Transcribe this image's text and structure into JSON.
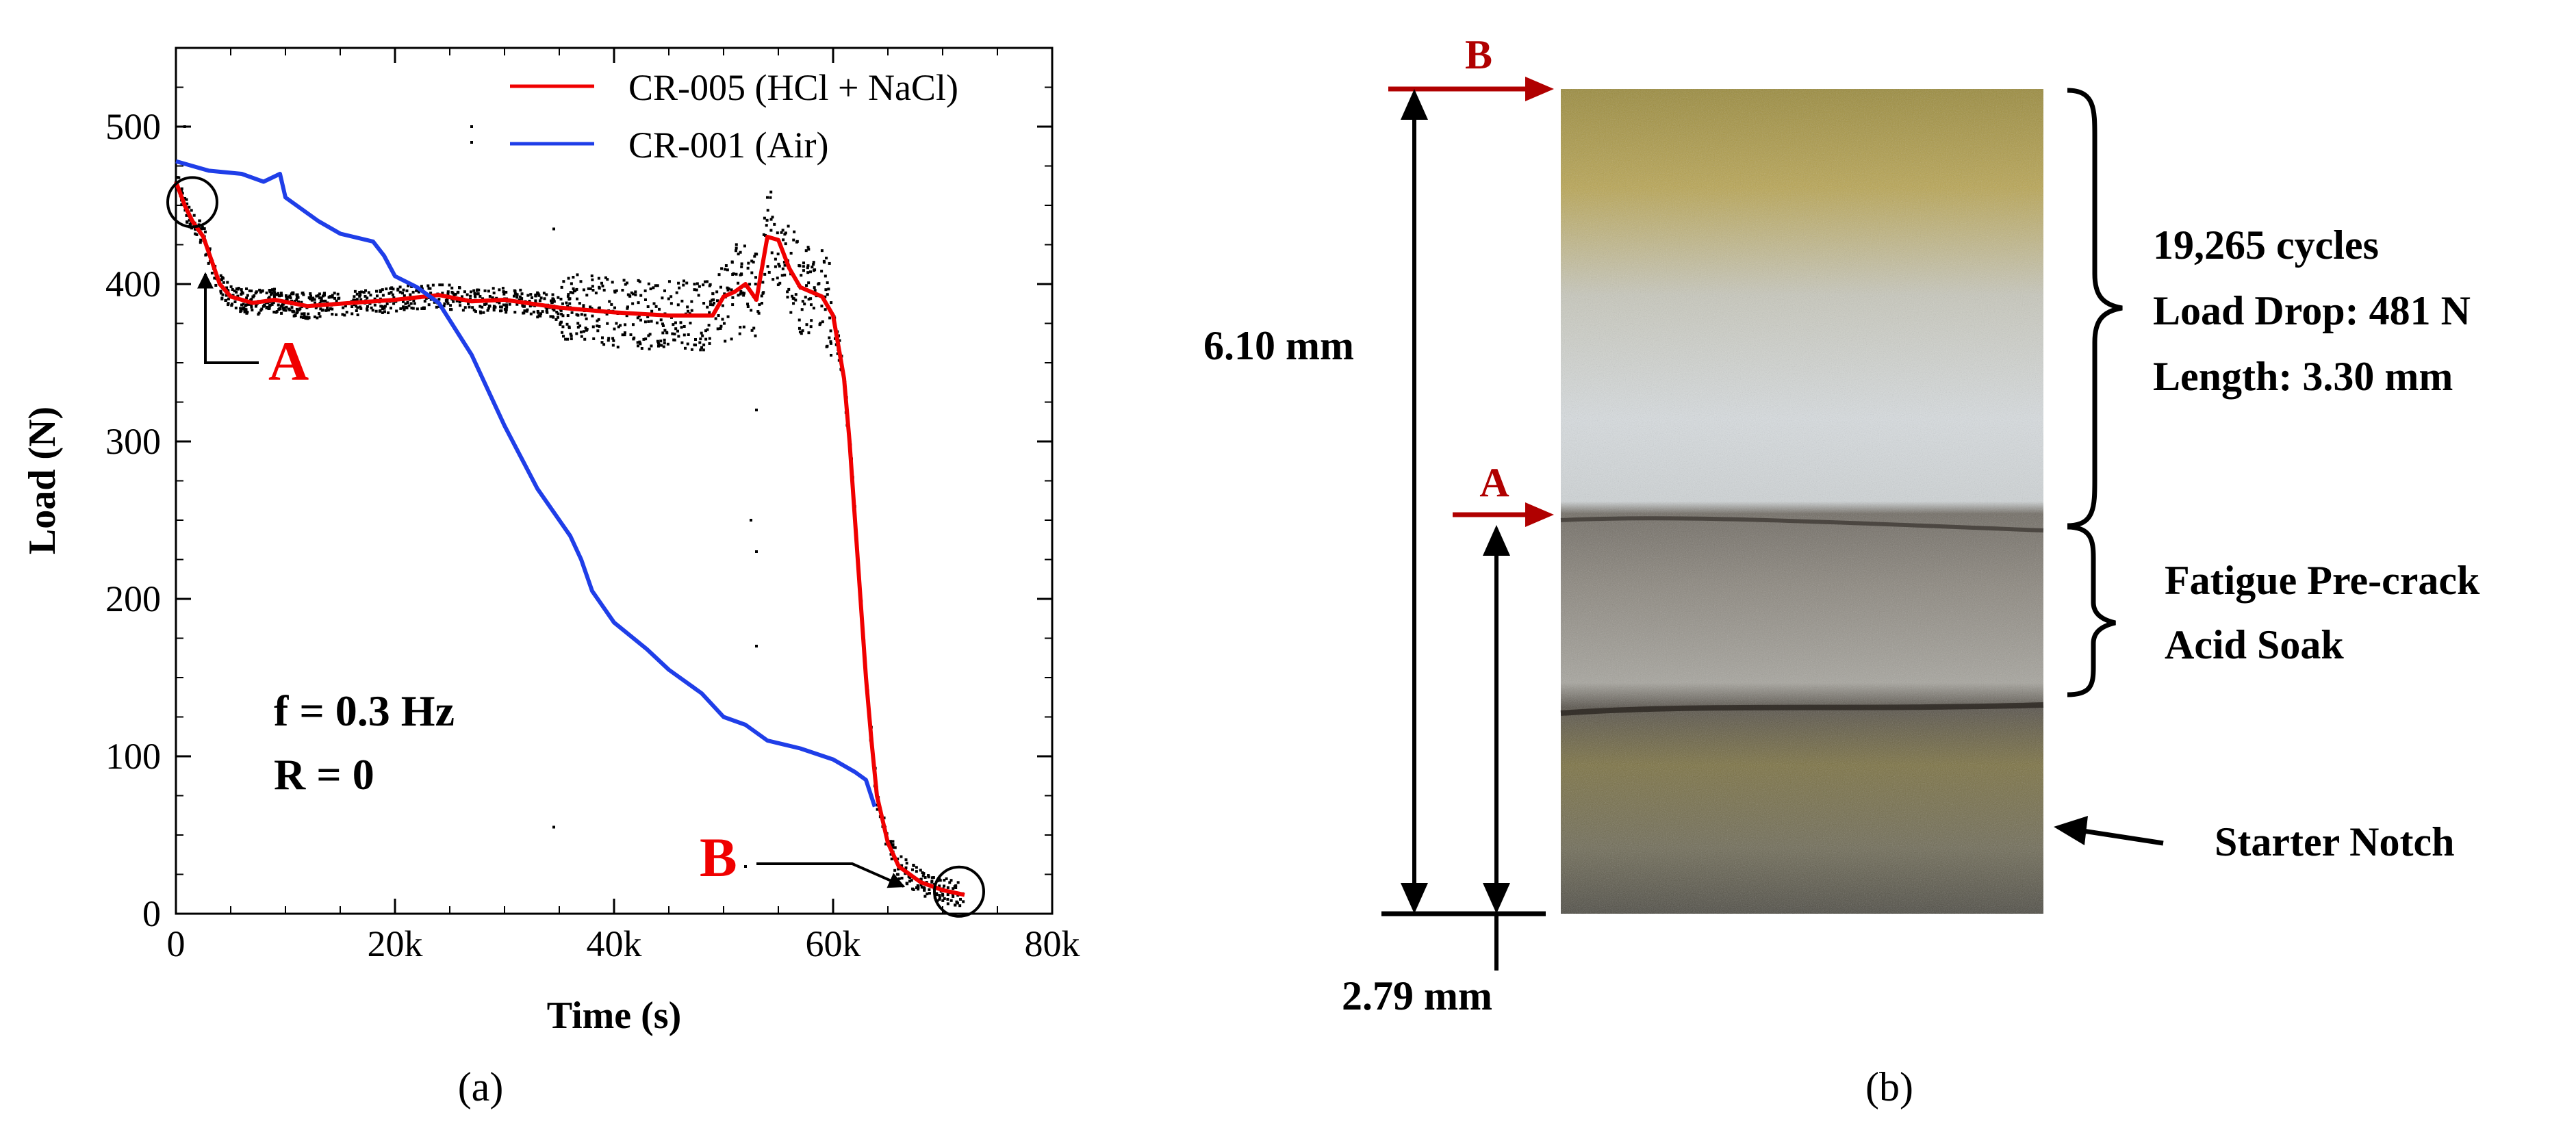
{
  "panel_a": {
    "label": "(a)",
    "annotations": {
      "point_a": "A",
      "point_b": "B",
      "freq": "f = 0.3 Hz",
      "ratio": "R = 0"
    }
  },
  "panel_b": {
    "label": "(b)",
    "marker_b": "B",
    "marker_a": "A",
    "dim_total": "6.10 mm",
    "dim_partial": "2.79 mm",
    "brace_top": {
      "line1": "19,265 cycles",
      "line2": "Load Drop: 481 N",
      "line3": "Length: 3.30 mm"
    },
    "brace_mid": {
      "line1": "Fatigue Pre-crack",
      "line2": "Acid Soak"
    },
    "starter_notch": "Starter Notch"
  },
  "colors": {
    "red": "#f00000",
    "blue": "#1f3ee8",
    "dark_red": "#b00000",
    "black": "#000000"
  },
  "icons": {
    "circle_marker": "circle-marker-icon",
    "arrow": "arrow-icon"
  },
  "chart_data": {
    "type": "line",
    "title": "",
    "xlabel": "Time (s)",
    "ylabel": "Load (N)",
    "xlim": [
      0,
      80000
    ],
    "ylim": [
      0,
      550
    ],
    "xticks": [
      0,
      20000,
      40000,
      60000,
      80000
    ],
    "xtick_labels": [
      "0",
      "20k",
      "40k",
      "60k",
      "80k"
    ],
    "yticks": [
      0,
      100,
      200,
      300,
      400,
      500
    ],
    "ytick_labels": [
      "0",
      "100",
      "200",
      "300",
      "400",
      "500"
    ],
    "legend_position": "top-right",
    "series": [
      {
        "name": "CR-005 (HCl + NaCl)",
        "color": "#f00000",
        "x": [
          0,
          800,
          1500,
          2500,
          3000,
          4000,
          5000,
          7000,
          9000,
          12000,
          16000,
          20000,
          24000,
          27000,
          30000,
          35000,
          40000,
          45000,
          49000,
          50000,
          51000,
          52000,
          53000,
          54000,
          55000,
          56000,
          57000,
          58000,
          59000,
          60000,
          61000,
          61500,
          62000,
          62500,
          63000,
          63500,
          64000,
          65000,
          66000,
          68000,
          70000,
          72000
        ],
        "y": [
          465,
          450,
          440,
          430,
          420,
          400,
          392,
          388,
          390,
          386,
          388,
          390,
          393,
          389,
          390,
          385,
          382,
          380,
          380,
          392,
          395,
          400,
          390,
          430,
          428,
          410,
          398,
          395,
          392,
          380,
          340,
          300,
          250,
          200,
          150,
          110,
          75,
          45,
          30,
          20,
          15,
          12
        ]
      },
      {
        "name": "CR-001 (Air)",
        "color": "#1f3ee8",
        "x": [
          0,
          3000,
          6000,
          8000,
          9500,
          10000,
          11000,
          13000,
          15000,
          18000,
          19000,
          20000,
          22000,
          24000,
          27000,
          30000,
          33000,
          36000,
          37000,
          38000,
          40000,
          43000,
          45000,
          48000,
          50000,
          52000,
          54000,
          57000,
          60000,
          62000,
          63000,
          63800
        ],
        "y": [
          478,
          472,
          470,
          465,
          470,
          455,
          450,
          440,
          432,
          427,
          418,
          405,
          398,
          388,
          355,
          310,
          270,
          240,
          225,
          205,
          185,
          168,
          155,
          140,
          125,
          120,
          110,
          105,
          98,
          90,
          85,
          68
        ]
      }
    ],
    "scatter_note": "Black dots: raw CR-005 data scattered around the red curve",
    "markers": [
      {
        "name": "A",
        "x": 1500,
        "y": 452
      },
      {
        "name": "B",
        "x": 71500,
        "y": 14
      }
    ]
  }
}
